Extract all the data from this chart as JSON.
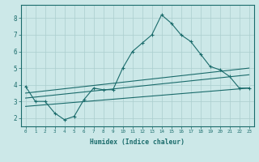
{
  "xlabel": "Humidex (Indice chaleur)",
  "x_values": [
    0,
    1,
    2,
    3,
    4,
    5,
    6,
    7,
    8,
    9,
    10,
    11,
    12,
    13,
    14,
    15,
    16,
    17,
    18,
    19,
    20,
    21,
    22,
    23
  ],
  "line1": [
    3.9,
    3.0,
    3.0,
    2.3,
    1.9,
    2.1,
    3.1,
    3.8,
    3.7,
    3.7,
    5.0,
    6.0,
    6.5,
    7.0,
    8.2,
    7.7,
    7.0,
    6.6,
    5.85,
    5.1,
    4.9,
    4.5,
    3.8,
    3.8
  ],
  "trend1_x": [
    0,
    23
  ],
  "trend1_y": [
    3.5,
    5.0
  ],
  "trend2_x": [
    0,
    23
  ],
  "trend2_y": [
    3.2,
    4.6
  ],
  "trend3_x": [
    0,
    23
  ],
  "trend3_y": [
    2.7,
    3.8
  ],
  "ylim": [
    1.5,
    8.8
  ],
  "xlim": [
    -0.5,
    23.5
  ],
  "bg_color": "#cce8e8",
  "grid_color": "#aacece",
  "line_color": "#1a6b6b",
  "tick_color": "#1a6b6b",
  "label_color": "#1a6b6b"
}
